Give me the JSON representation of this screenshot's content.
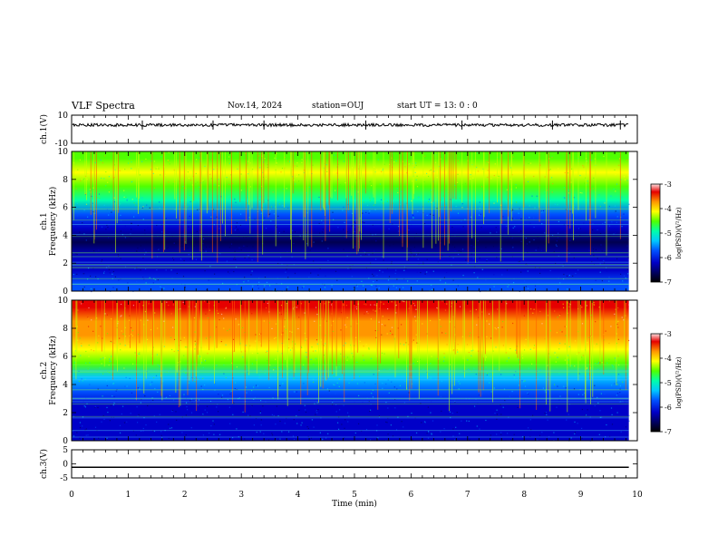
{
  "header": {
    "title": "VLF Spectra",
    "date": "Nov.14, 2024",
    "station": "station=OUJ",
    "start": "start  UT =  13: 0  : 0"
  },
  "chart_data": [
    {
      "type": "line",
      "panel": "ch1-waveform",
      "ylabel": "ch.1(V)",
      "ylim": [
        -10,
        10
      ],
      "yticks": [
        10,
        -10
      ],
      "series": [
        {
          "values": [
            3,
            3,
            3,
            3,
            3,
            3,
            3,
            3,
            3,
            3,
            3
          ]
        }
      ],
      "x": [
        0,
        1,
        2,
        3,
        4,
        5,
        6,
        7,
        8,
        9,
        9.85
      ]
    },
    {
      "type": "heatmap",
      "panel": "ch1-spectrogram",
      "ylabel": "ch.1 Frequency (kHz)",
      "ylim": [
        0,
        10
      ],
      "yticks": [
        0,
        2,
        4,
        6,
        8,
        10
      ],
      "xlim": [
        0,
        9.85
      ],
      "colorbar": {
        "label": "log(PSD)(V²/Hz)",
        "ticks": [
          -3,
          -4,
          -5,
          -6,
          -7
        ],
        "range": [
          -7,
          -3
        ]
      },
      "profile": [
        {
          "f": 0.5,
          "log_psd": -5.9
        },
        {
          "f": 1.5,
          "log_psd": -6.4
        },
        {
          "f": 2.5,
          "log_psd": -6.6
        },
        {
          "f": 3.5,
          "log_psd": -6.8
        },
        {
          "f": 4.5,
          "log_psd": -6.5
        },
        {
          "f": 5.5,
          "log_psd": -6.0
        },
        {
          "f": 6.5,
          "log_psd": -5.3
        },
        {
          "f": 7.5,
          "log_psd": -4.7
        },
        {
          "f": 8.5,
          "log_psd": -4.6
        },
        {
          "f": 9.5,
          "log_psd": -4.7
        }
      ]
    },
    {
      "type": "heatmap",
      "panel": "ch2-spectrogram",
      "ylabel": "ch.2 Frequency (kHz)",
      "ylim": [
        0,
        10
      ],
      "yticks": [
        0,
        2,
        4,
        6,
        8,
        10
      ],
      "xlim": [
        0,
        9.85
      ],
      "colorbar": {
        "label": "log(PSD)(V²/Hz)",
        "ticks": [
          -3,
          -4,
          -5,
          -6,
          -7
        ],
        "range": [
          -7,
          -3
        ]
      },
      "profile": [
        {
          "f": 0.5,
          "log_psd": -6.2
        },
        {
          "f": 1.5,
          "log_psd": -6.3
        },
        {
          "f": 2.5,
          "log_psd": -6.2
        },
        {
          "f": 3.5,
          "log_psd": -5.9
        },
        {
          "f": 4.5,
          "log_psd": -5.4
        },
        {
          "f": 5.5,
          "log_psd": -5.0
        },
        {
          "f": 6.5,
          "log_psd": -4.6
        },
        {
          "f": 7.5,
          "log_psd": -4.2
        },
        {
          "f": 8.5,
          "log_psd": -3.9
        },
        {
          "f": 9.5,
          "log_psd": -3.8
        }
      ]
    },
    {
      "type": "line",
      "panel": "ch3-waveform",
      "ylabel": "ch.3(V)",
      "ylim": [
        -5,
        5
      ],
      "yticks": [
        5,
        0,
        -5
      ],
      "series": [
        {
          "values": [
            -1.2,
            -1.2
          ]
        }
      ],
      "x": [
        0,
        9.85
      ],
      "xlabel": "Time  (min)",
      "xlim": [
        0,
        10
      ],
      "xticks": [
        0,
        1,
        2,
        3,
        4,
        5,
        6,
        7,
        8,
        9,
        10
      ]
    }
  ],
  "colors": {
    "axis": "#000000",
    "colormap": [
      "#000050",
      "#0000c8",
      "#0050ff",
      "#00c8ff",
      "#00ffaa",
      "#50ff00",
      "#ffff00",
      "#ff9600",
      "#e60000",
      "#ffe0e0"
    ]
  }
}
